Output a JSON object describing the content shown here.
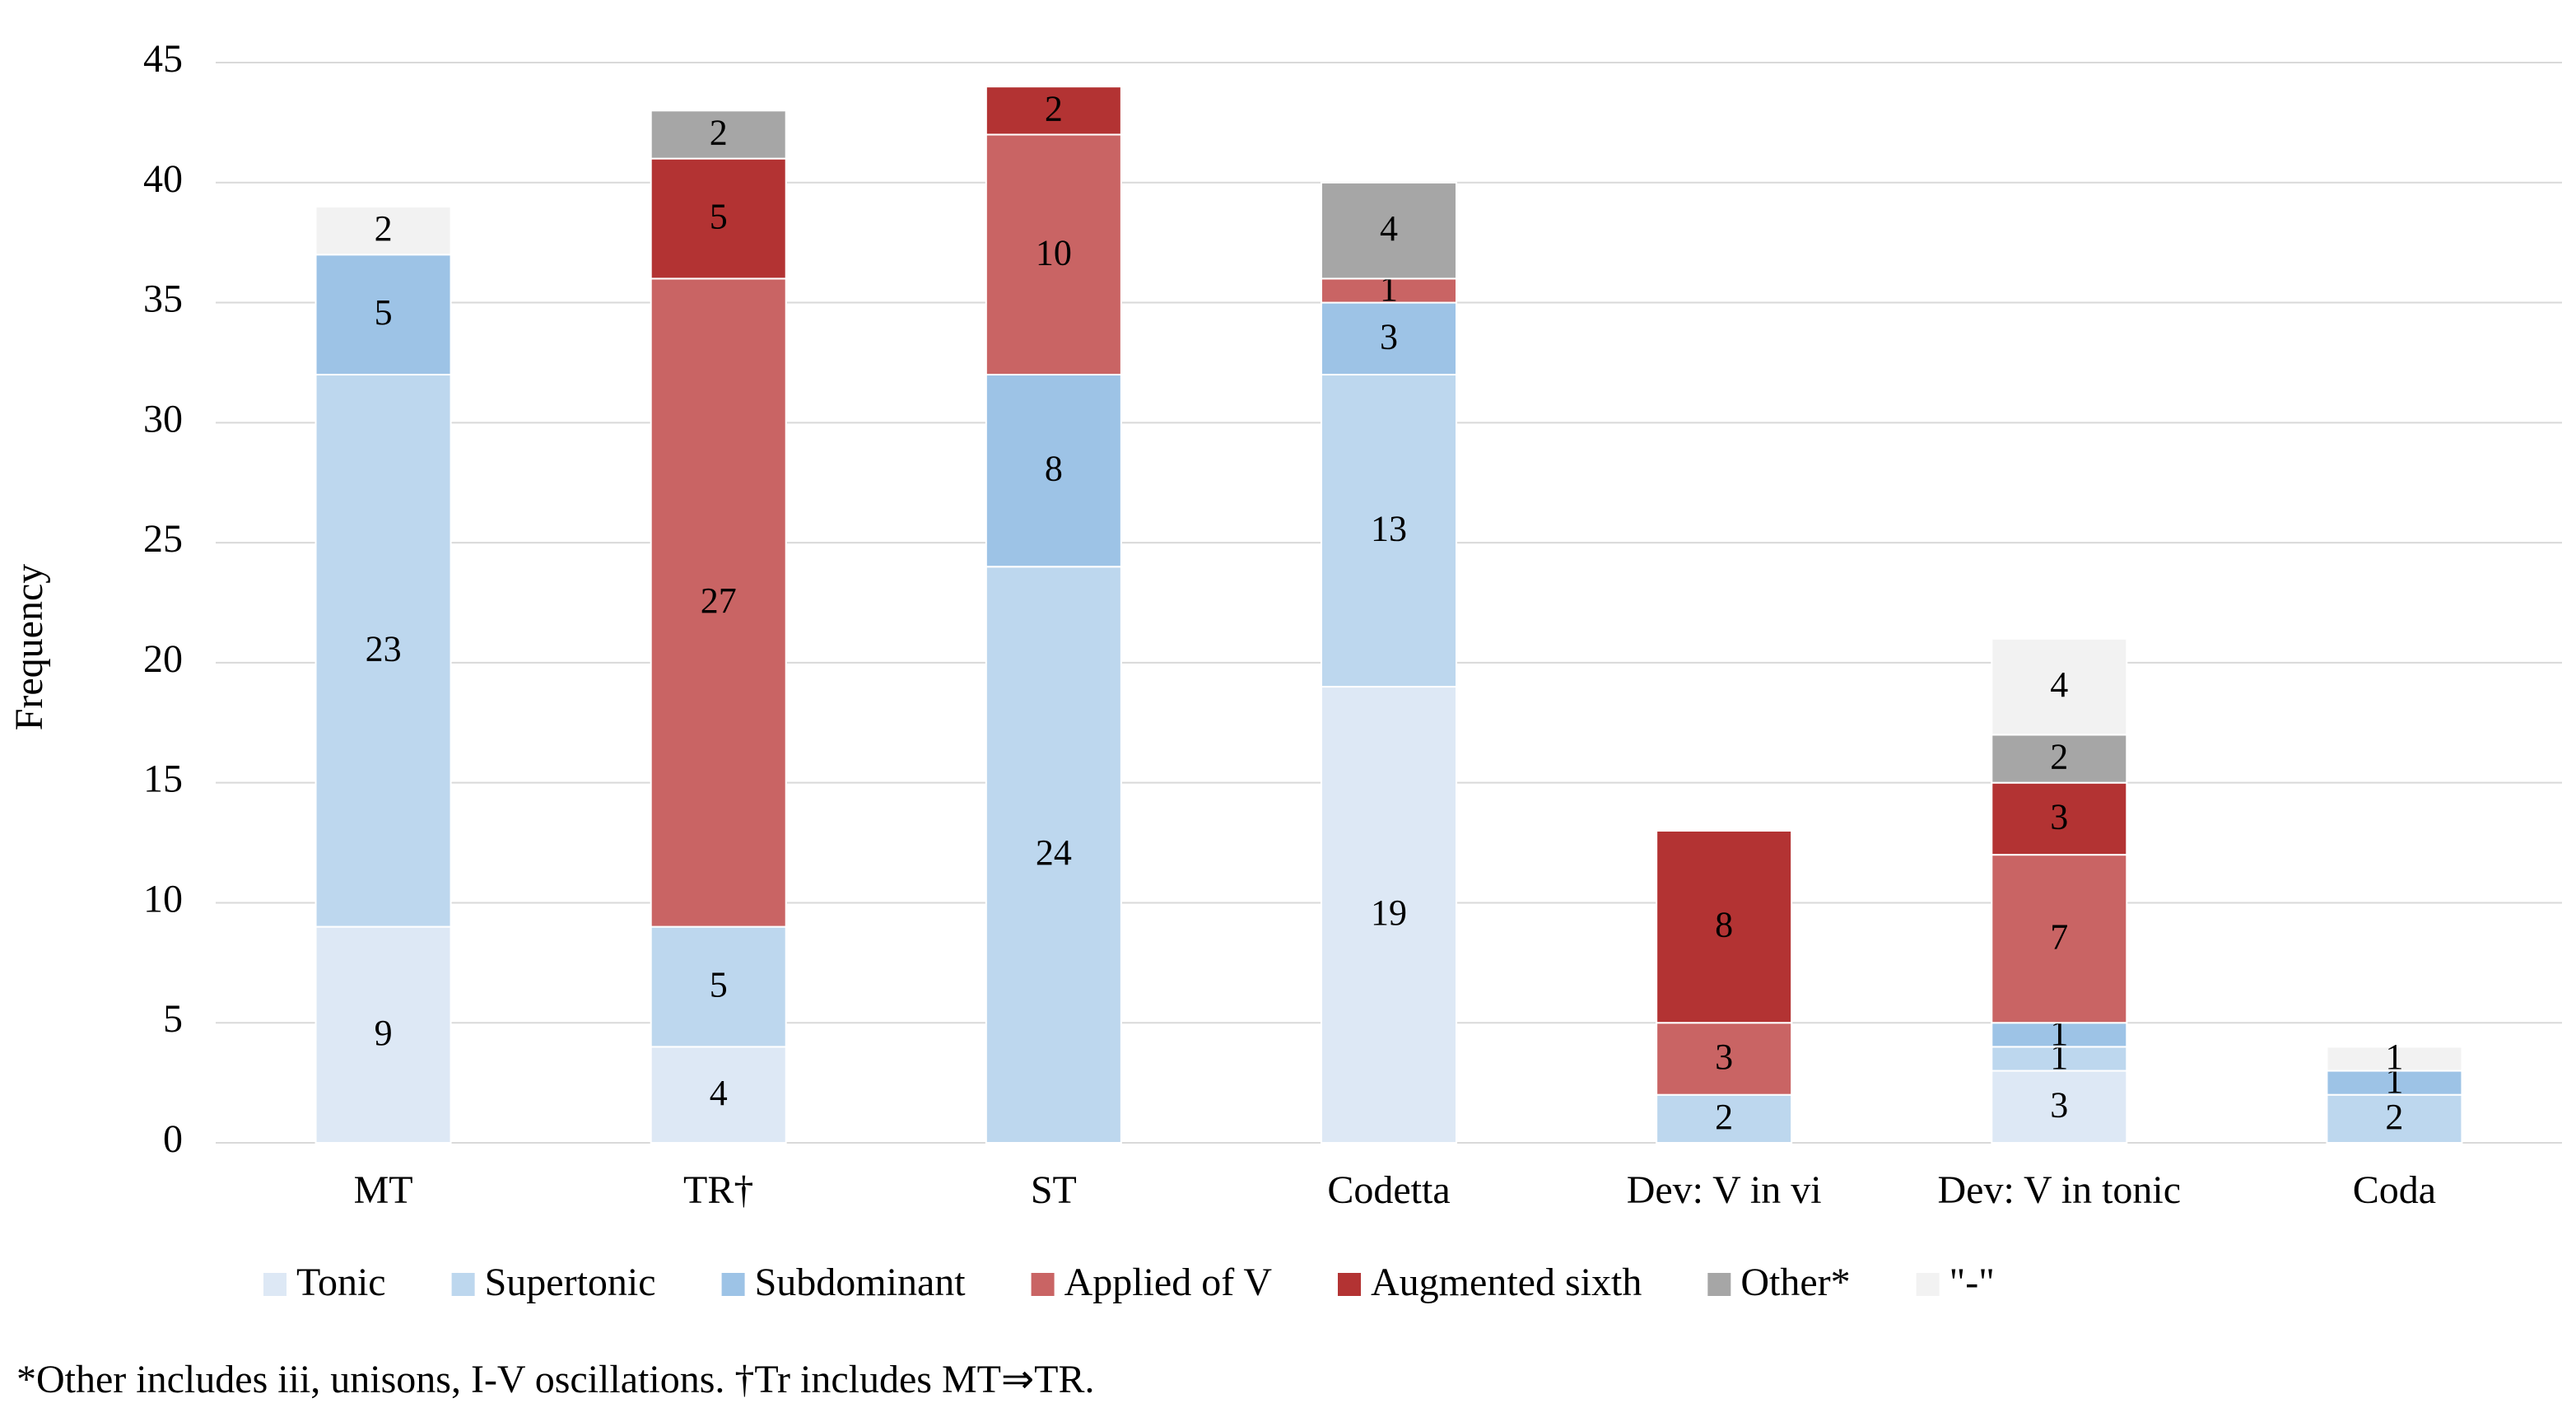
{
  "chart_data": {
    "type": "stacked_bar",
    "y_label": "Frequency",
    "categories": [
      "MT",
      "TR†",
      "ST",
      "Codetta",
      "Dev: V in vi",
      "Dev: V in tonic",
      "Coda"
    ],
    "series": [
      {
        "name": "Tonic",
        "color": "#dde8f5",
        "values": [
          9,
          4,
          null,
          19,
          null,
          3,
          null
        ]
      },
      {
        "name": "Supertonic",
        "color": "#bdd7ee",
        "values": [
          23,
          5,
          24,
          13,
          2,
          1,
          2
        ]
      },
      {
        "name": "Subdominant",
        "color": "#9dc3e6",
        "values": [
          5,
          null,
          8,
          3,
          null,
          1,
          1
        ]
      },
      {
        "name": "Applied of V",
        "color": "#c96464",
        "values": [
          null,
          27,
          10,
          1,
          3,
          7,
          null
        ]
      },
      {
        "name": "Augmented sixth",
        "color": "#b33333",
        "values": [
          null,
          5,
          2,
          null,
          8,
          3,
          null
        ]
      },
      {
        "name": "Other*",
        "color": "#a6a6a6",
        "values": [
          null,
          2,
          null,
          4,
          null,
          2,
          null
        ]
      },
      {
        "name": "\"-\"",
        "color": "#f2f2f2",
        "values": [
          2,
          null,
          null,
          null,
          null,
          4,
          1
        ]
      }
    ],
    "ylim": [
      0,
      45
    ],
    "yticks": [
      0,
      5,
      10,
      15,
      20,
      25,
      30,
      35,
      40,
      45
    ],
    "grid": true,
    "legend": "bottom",
    "footnote": "*Other includes iii, unisons, I-V oscillations.  †Tr includes MT⇒TR."
  }
}
